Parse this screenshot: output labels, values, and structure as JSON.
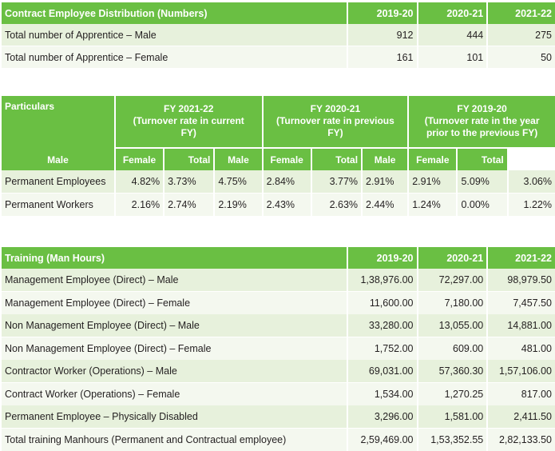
{
  "contract": {
    "header": [
      "Contract Employee Distribution (Numbers)",
      "2019-20",
      "2020-21",
      "2021-22"
    ],
    "rows": [
      {
        "label": "Total number of Apprentice – Male",
        "values": [
          "912",
          "444",
          "275"
        ]
      },
      {
        "label": "Total number of Apprentice – Female",
        "values": [
          "161",
          "101",
          "50"
        ]
      }
    ]
  },
  "turnover": {
    "particulars": "Particulars",
    "periods": [
      {
        "line1": "FY 2021-22",
        "line2": "(Turnover rate in current",
        "line3": "FY)"
      },
      {
        "line1": "FY 2020-21",
        "line2": "(Turnover rate in previous",
        "line3": "FY)"
      },
      {
        "line1": "FY 2019-20",
        "line2": "(Turnover rate in the year",
        "line3": "prior to the previous FY)"
      }
    ],
    "subheaders": [
      "Male",
      "Female",
      "Total"
    ],
    "rows": [
      {
        "label": "Permanent Employees",
        "values": [
          "4.82%",
          "3.73%",
          "4.75%",
          "2.84%",
          "3.77%",
          "2.91%",
          "2.91%",
          "5.09%",
          "3.06%"
        ]
      },
      {
        "label": "Permanent Workers",
        "values": [
          "2.16%",
          "2.74%",
          "2.19%",
          "2.43%",
          "2.63%",
          "2.44%",
          "1.24%",
          "0.00%",
          "1.22%"
        ]
      }
    ]
  },
  "training": {
    "header": [
      "Training (Man Hours)",
      "2019-20",
      "2020-21",
      "2021-22"
    ],
    "rows": [
      {
        "label": "Management Employee (Direct) – Male",
        "values": [
          "1,38,976.00",
          "72,297.00",
          "98,979.50"
        ]
      },
      {
        "label": "Management Employee (Direct) – Female",
        "values": [
          "11,600.00",
          "7,180.00",
          "7,457.50"
        ]
      },
      {
        "label": "Non Management Employee (Direct) – Male",
        "values": [
          "33,280.00",
          "13,055.00",
          "14,881.00"
        ]
      },
      {
        "label": "Non Management Employee (Direct) – Female",
        "values": [
          "1,752.00",
          "609.00",
          "481.00"
        ]
      },
      {
        "label": "Contractor Worker (Operations) – Male",
        "values": [
          "69,031.00",
          "57,360.30",
          "1,57,106.00"
        ]
      },
      {
        "label": "Contract Worker  (Operations) – Female",
        "values": [
          "1,534.00",
          "1,270.25",
          "817.00"
        ]
      },
      {
        "label": "Permanent Employee – Physically Disabled",
        "values": [
          "3,296.00",
          "1,581.00",
          "2,411.50"
        ]
      },
      {
        "label": "Total training Manhours  (Permanent and Contractual employee)",
        "values": [
          "2,59,469.00",
          "1,53,352.55",
          "2,82,133.50"
        ]
      }
    ]
  },
  "colors": {
    "header_green": "#6abf43",
    "row_green": "#e7f1dc",
    "row_light": "#f4f8ef"
  }
}
